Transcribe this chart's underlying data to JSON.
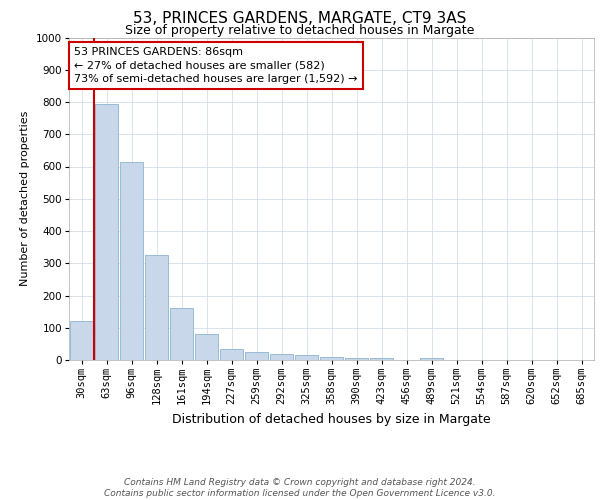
{
  "title": "53, PRINCES GARDENS, MARGATE, CT9 3AS",
  "subtitle": "Size of property relative to detached houses in Margate",
  "xlabel": "Distribution of detached houses by size in Margate",
  "ylabel": "Number of detached properties",
  "bar_color": "#c8d8ea",
  "bar_edge_color": "#7aaac8",
  "highlight_color": "#cc0000",
  "background_color": "#ffffff",
  "grid_color": "#ccd8e8",
  "categories": [
    "30sqm",
    "63sqm",
    "96sqm",
    "128sqm",
    "161sqm",
    "194sqm",
    "227sqm",
    "259sqm",
    "292sqm",
    "325sqm",
    "358sqm",
    "390sqm",
    "423sqm",
    "456sqm",
    "489sqm",
    "521sqm",
    "554sqm",
    "587sqm",
    "620sqm",
    "652sqm",
    "685sqm"
  ],
  "values": [
    120,
    795,
    615,
    325,
    160,
    80,
    35,
    25,
    20,
    15,
    10,
    5,
    5,
    0,
    5,
    0,
    0,
    0,
    0,
    0,
    0
  ],
  "highlight_bar_index": 1,
  "annotation_text": "53 PRINCES GARDENS: 86sqm\n← 27% of detached houses are smaller (582)\n73% of semi-detached houses are larger (1,592) →",
  "ylim": [
    0,
    1000
  ],
  "yticks": [
    0,
    100,
    200,
    300,
    400,
    500,
    600,
    700,
    800,
    900,
    1000
  ],
  "footnote1": "Contains HM Land Registry data © Crown copyright and database right 2024.",
  "footnote2": "Contains public sector information licensed under the Open Government Licence v3.0.",
  "title_fontsize": 11,
  "subtitle_fontsize": 9,
  "xlabel_fontsize": 9,
  "ylabel_fontsize": 8,
  "tick_fontsize": 7.5,
  "annotation_fontsize": 8,
  "footnote_fontsize": 6.5
}
